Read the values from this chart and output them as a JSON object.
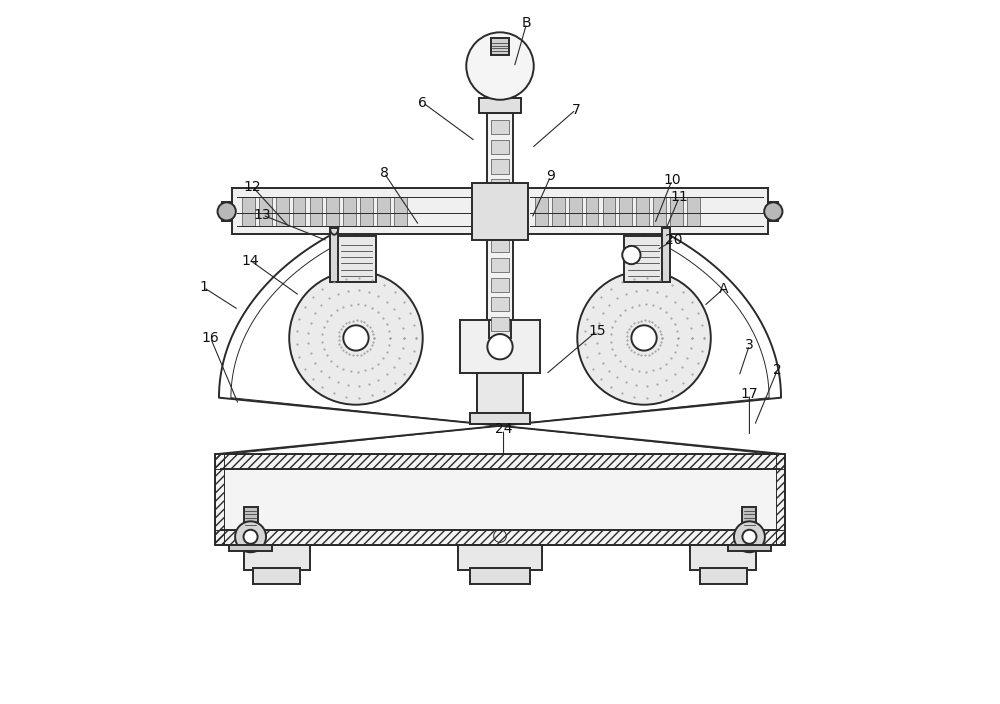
{
  "bg_color": "#ffffff",
  "line_color": "#2a2a2a",
  "fig_width": 10.0,
  "fig_height": 7.04,
  "label_color": "#111111",
  "label_fs": 10,
  "lw_main": 1.4,
  "lw_thin": 0.7,
  "annotations": {
    "B": [
      0.538,
      0.968,
      0.52,
      0.905
    ],
    "6": [
      0.39,
      0.855,
      0.465,
      0.8
    ],
    "7": [
      0.608,
      0.845,
      0.545,
      0.79
    ],
    "8": [
      0.335,
      0.755,
      0.385,
      0.68
    ],
    "9": [
      0.572,
      0.75,
      0.545,
      0.69
    ],
    "10": [
      0.745,
      0.745,
      0.72,
      0.682
    ],
    "11": [
      0.755,
      0.72,
      0.735,
      0.672
    ],
    "12": [
      0.148,
      0.735,
      0.2,
      0.678
    ],
    "13": [
      0.162,
      0.695,
      0.255,
      0.658
    ],
    "14": [
      0.145,
      0.63,
      0.215,
      0.58
    ],
    "15": [
      0.638,
      0.53,
      0.565,
      0.468
    ],
    "16": [
      0.088,
      0.52,
      0.128,
      0.425
    ],
    "1": [
      0.078,
      0.592,
      0.128,
      0.56
    ],
    "2": [
      0.895,
      0.475,
      0.862,
      0.395
    ],
    "3": [
      0.855,
      0.51,
      0.84,
      0.465
    ],
    "17": [
      0.855,
      0.44,
      0.855,
      0.38
    ],
    "20": [
      0.748,
      0.66,
      0.723,
      0.645
    ],
    "A": [
      0.818,
      0.59,
      0.79,
      0.565
    ],
    "24": [
      0.505,
      0.39,
      0.505,
      0.35
    ]
  }
}
